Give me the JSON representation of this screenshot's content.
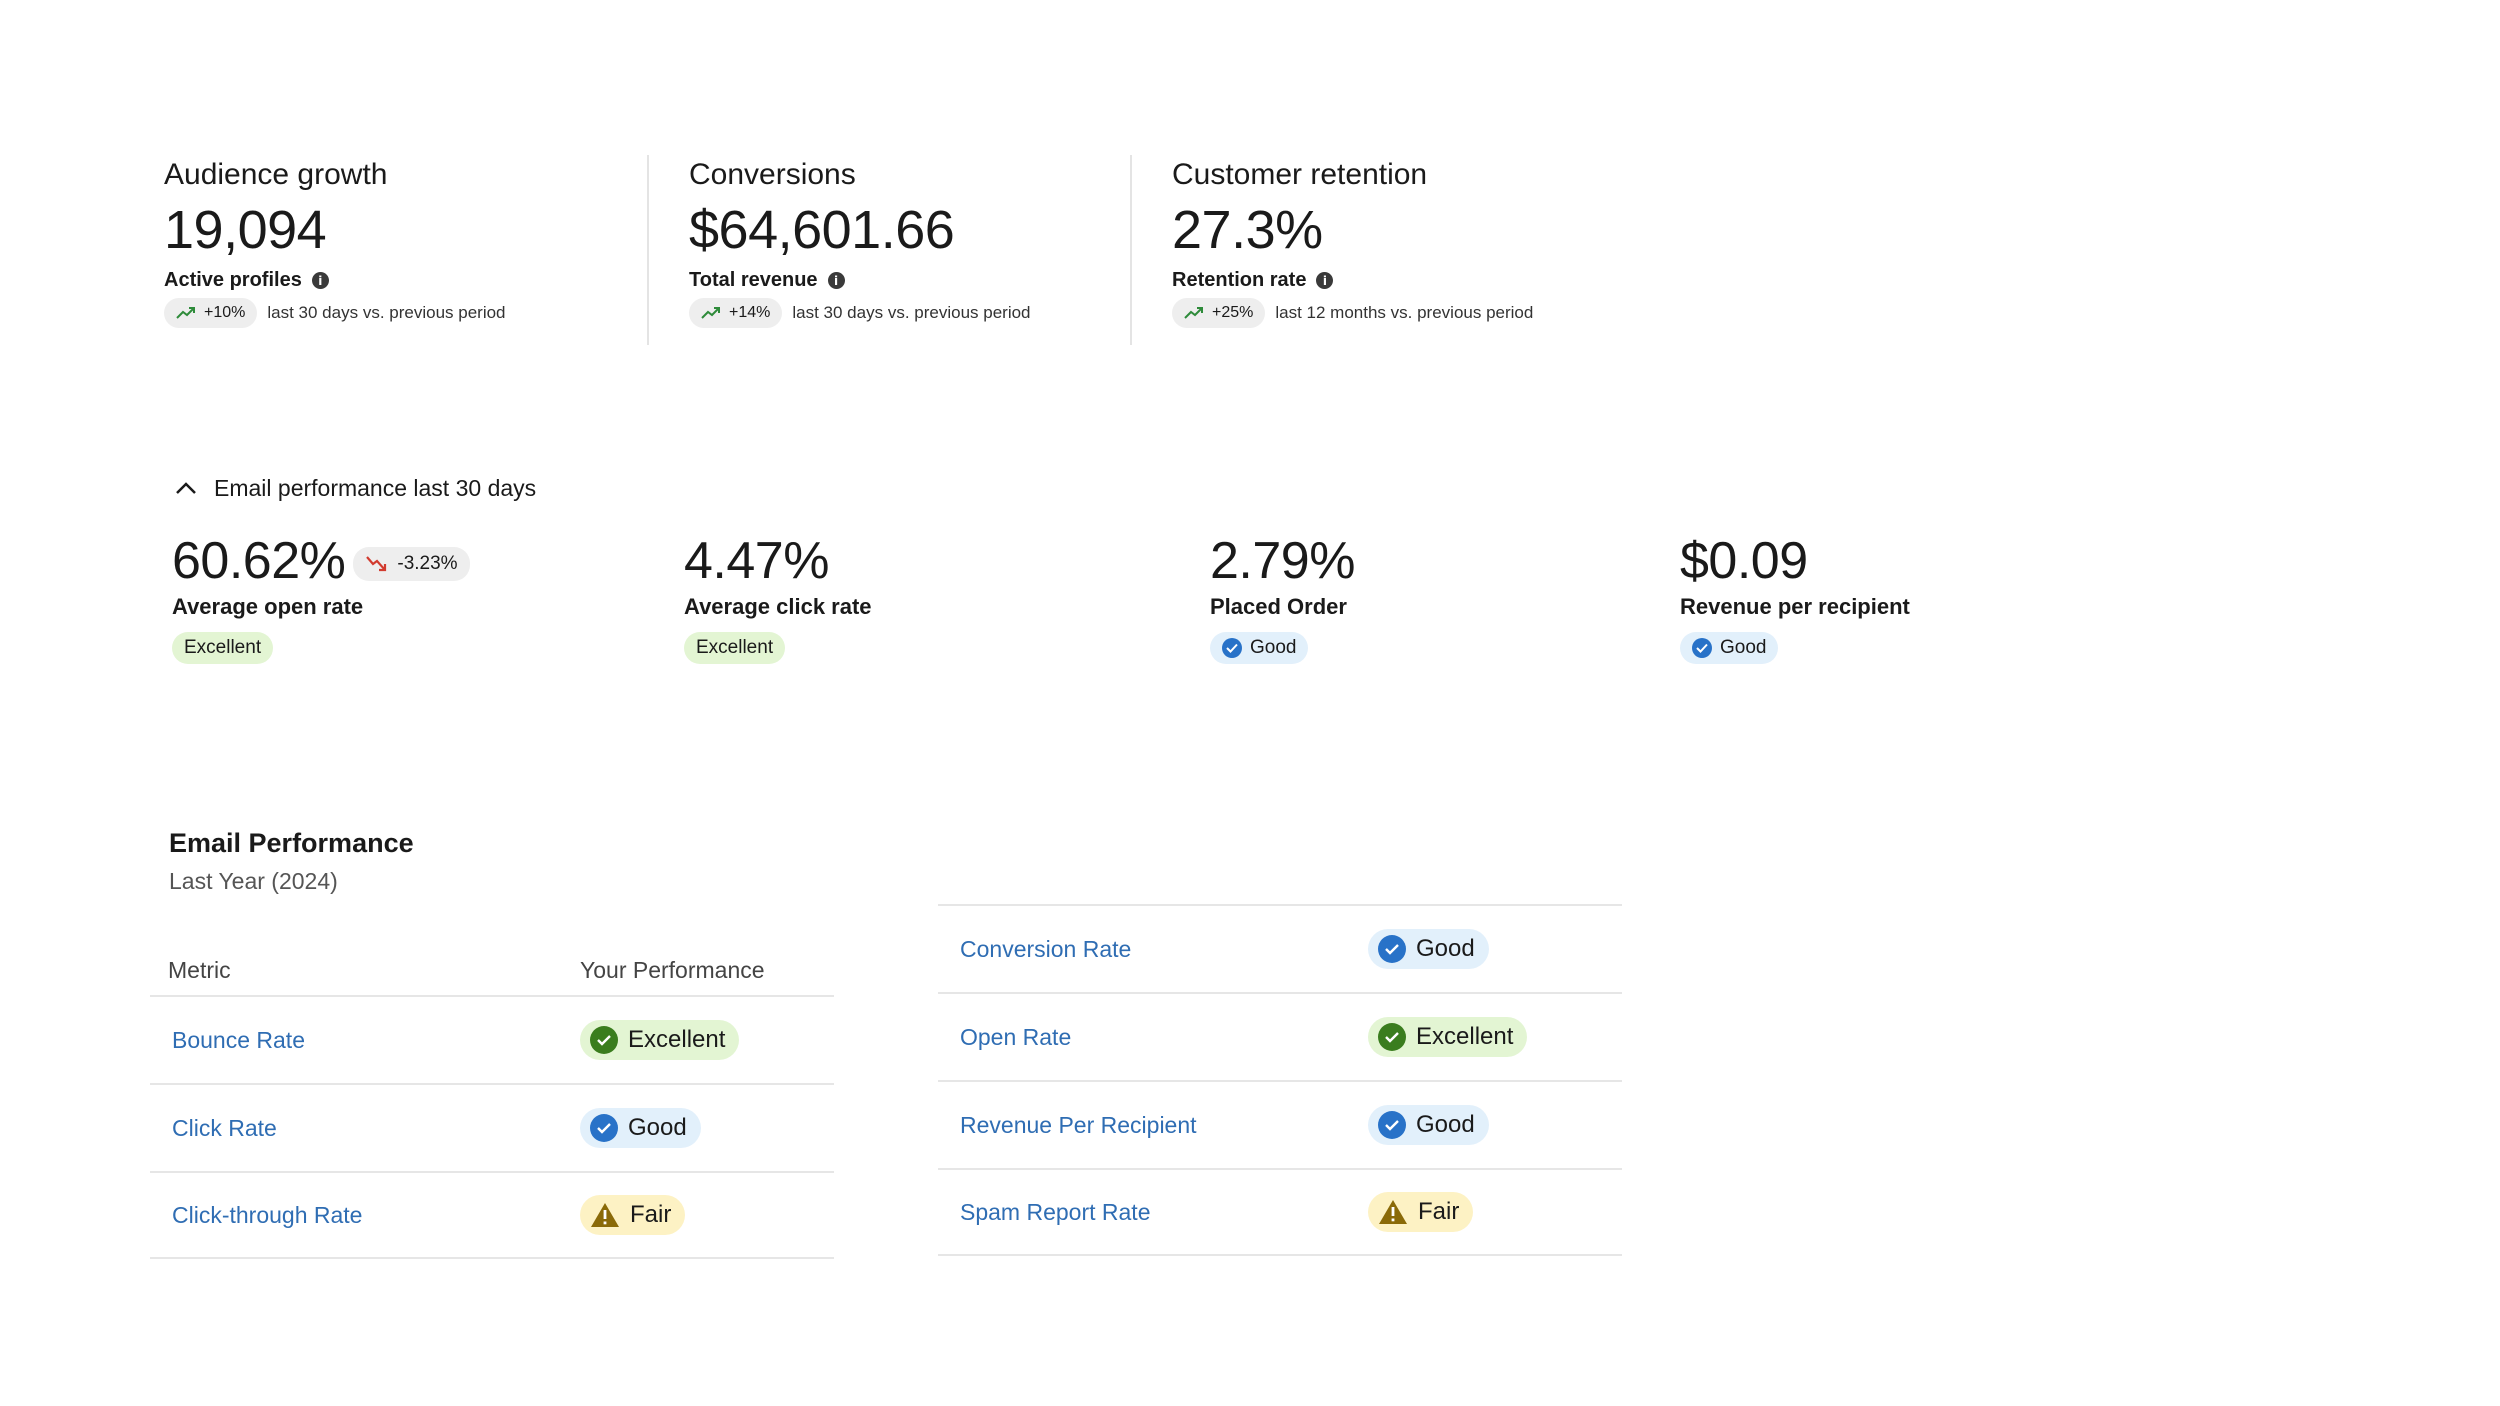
{
  "kpis": [
    {
      "title": "Audience growth",
      "value": "19,094",
      "sublabel": "Active profiles",
      "trend": "+10%",
      "period": "last 30 days vs. previous period"
    },
    {
      "title": "Conversions",
      "value": "$64,601.66",
      "sublabel": "Total revenue",
      "trend": "+14%",
      "period": "last 30 days vs. previous period"
    },
    {
      "title": "Customer retention",
      "value": "27.3%",
      "sublabel": "Retention rate",
      "trend": "+25%",
      "period": "last 12 months vs. previous period"
    }
  ],
  "recent_performance": {
    "header": "Email performance last 30 days",
    "metrics": [
      {
        "value": "60.62%",
        "delta": "-3.23%",
        "label": "Average open rate",
        "rating": "Excellent"
      },
      {
        "value": "4.47%",
        "label": "Average click rate",
        "rating": "Excellent"
      },
      {
        "value": "2.79%",
        "label": "Placed Order",
        "rating": "Good"
      },
      {
        "value": "$0.09",
        "label": "Revenue per recipient",
        "rating": "Good"
      }
    ]
  },
  "email_table": {
    "title": "Email Performance",
    "subtitle": "Last Year (2024)",
    "col_metric": "Metric",
    "col_perf": "Your Performance",
    "left_rows": [
      {
        "metric": "Bounce Rate",
        "rating": "Excellent"
      },
      {
        "metric": "Click Rate",
        "rating": "Good"
      },
      {
        "metric": "Click-through Rate",
        "rating": "Fair"
      }
    ],
    "right_rows": [
      {
        "metric": "Conversion Rate",
        "rating": "Good"
      },
      {
        "metric": "Open Rate",
        "rating": "Excellent"
      },
      {
        "metric": "Revenue Per Recipient",
        "rating": "Good"
      },
      {
        "metric": "Spam Report Rate",
        "rating": "Fair"
      }
    ]
  },
  "colors": {
    "link": "#2f6db3",
    "excellent_bg": "#e3f5d3",
    "good_bg": "#e2f0fb",
    "fair_bg": "#fdf2c4",
    "trend_up": "#2e8b3a",
    "trend_down": "#d23b2f"
  }
}
